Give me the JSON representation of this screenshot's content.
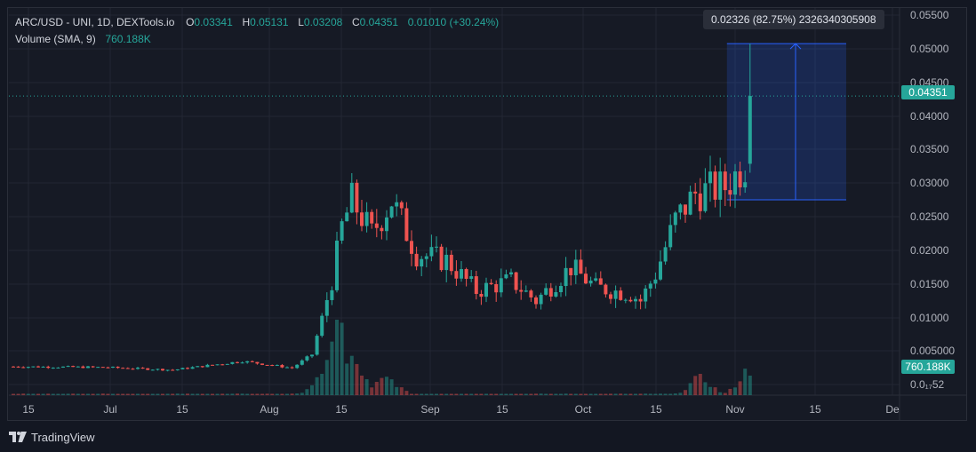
{
  "legend": {
    "symbol": "ARC/USD - UNI, 1D, DEXTools.io",
    "o_label": "O",
    "o_value": "0.03341",
    "h_label": "H",
    "h_value": "0.05131",
    "l_label": "L",
    "l_value": "0.03208",
    "c_label": "C",
    "c_value": "0.04351",
    "change": "0.01010 (+30.24%)",
    "volume_label": "Volume (SMA, 9)",
    "volume_value": "760.188K"
  },
  "measure": {
    "label": "0.02326 (82.75%) 2326340305908"
  },
  "price_tag": "0.04351",
  "volume_tag": "760.188K",
  "footer": {
    "brand": "TradingView"
  },
  "colors": {
    "up": "#26a69a",
    "down": "#ef5350",
    "measure": "#2962ff",
    "background": "#131722"
  },
  "chart_data": {
    "type": "candlestick",
    "title": "ARC/USD - UNI, 1D, DEXTools.io",
    "y_axis_labels": [
      "0.05500",
      "0.05000",
      "0.04500",
      "0.04000",
      "0.03500",
      "0.03000",
      "0.02500",
      "0.02000",
      "0.01500",
      "0.01000",
      "0.005000",
      "0.0₁₇52"
    ],
    "x_axis_labels": [
      "15",
      "Jul",
      "15",
      "Aug",
      "15",
      "Sep",
      "15",
      "Oct",
      "15",
      "Nov",
      "15",
      "De"
    ],
    "ylim": [
      0,
      0.057
    ],
    "last_price": 0.04351,
    "measure_range": {
      "from": 0.02805,
      "to": 0.05131,
      "change": 0.02326,
      "percent": 82.75
    },
    "key_levels": [
      {
        "x": "Jun 13",
        "price": 0.0032
      },
      {
        "x": "Jul 1",
        "price": 0.0031
      },
      {
        "x": "Jul 15",
        "price": 0.0027
      },
      {
        "x": "Jul 29",
        "price": 0.004
      },
      {
        "x": "Aug 8",
        "price": 0.003
      },
      {
        "x": "Aug 12",
        "price": 0.005
      },
      {
        "x": "Aug 16",
        "price": 0.016
      },
      {
        "x": "Aug 18",
        "price": 0.024
      },
      {
        "x": "Aug 20",
        "price": 0.028
      },
      {
        "x": "Aug 24",
        "price": 0.023
      },
      {
        "x": "Aug 28",
        "price": 0.028
      },
      {
        "x": "Sep 2",
        "price": 0.02
      },
      {
        "x": "Sep 8",
        "price": 0.019
      },
      {
        "x": "Sep 14",
        "price": 0.0145
      },
      {
        "x": "Sep 21",
        "price": 0.016
      },
      {
        "x": "Sep 26",
        "price": 0.013
      },
      {
        "x": "Oct 3",
        "price": 0.018
      },
      {
        "x": "Oct 8",
        "price": 0.015
      },
      {
        "x": "Oct 15",
        "price": 0.014
      },
      {
        "x": "Oct 17",
        "price": 0.013
      },
      {
        "x": "Oct 20",
        "price": 0.017
      },
      {
        "x": "Oct 24",
        "price": 0.025
      },
      {
        "x": "Oct 28",
        "price": 0.029
      },
      {
        "x": "Nov 3",
        "price": 0.03
      },
      {
        "x": "Nov 7",
        "price": 0.0334
      },
      {
        "x": "Nov 8",
        "price": 0.04351
      }
    ],
    "volume_profile": [
      {
        "x": "Aug 14",
        "relative": 0.2
      },
      {
        "x": "Aug 17",
        "relative": 1.0
      },
      {
        "x": "Aug 20",
        "relative": 0.4
      },
      {
        "x": "Aug 27",
        "relative": 0.2
      },
      {
        "x": "Oct 29",
        "relative": 0.2
      },
      {
        "x": "Nov 8",
        "relative": 0.3
      }
    ]
  }
}
